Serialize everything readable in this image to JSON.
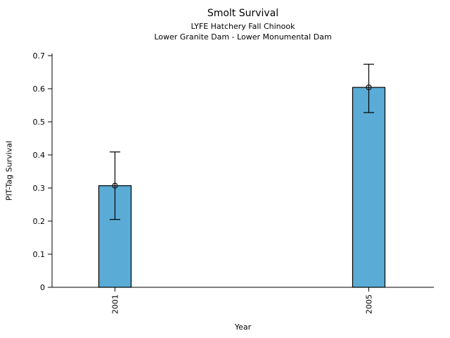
{
  "chart_data": {
    "type": "bar",
    "title": "Smolt Survival",
    "subtitle1": "LYFE Hatchery Fall Chinook",
    "subtitle2": "Lower Granite Dam - Lower Monumental Dam",
    "xlabel": "Year",
    "ylabel": "PIT-Tag Survival",
    "categories": [
      "2001",
      "2005"
    ],
    "values": [
      0.307,
      0.604
    ],
    "markers": [
      0.307,
      0.604
    ],
    "error_bars": [
      {
        "low": 0.205,
        "high": 0.409
      },
      {
        "low": 0.528,
        "high": 0.674
      }
    ],
    "ylim": [
      0,
      0.7
    ],
    "yticks": [
      0,
      0.1,
      0.2,
      0.3,
      0.4,
      0.5,
      0.6,
      0.7
    ],
    "ytick_labels": [
      "0",
      "0.1",
      "0.2",
      "0.3",
      "0.4",
      "0.5",
      "0.6",
      "0.7"
    ],
    "grid": false,
    "legend_position": "none",
    "bar_color": "#5aabd5",
    "bar_edge_color": "#000000",
    "error_color": "#000000",
    "marker_style": "open-circle",
    "axis_color": "#000000"
  }
}
